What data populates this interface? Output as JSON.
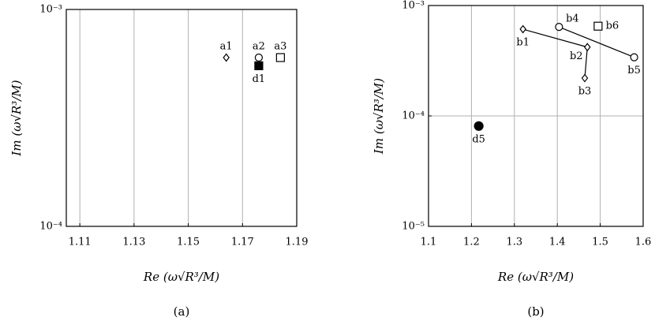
{
  "chart_data": [
    {
      "type": "scatter",
      "caption": "(a)",
      "x_label": "Re (ω√R³/M)",
      "y_label": "Im (ω√R³/M)",
      "xlim": [
        1.105,
        1.19
      ],
      "xticks": [
        1.11,
        1.13,
        1.15,
        1.17,
        1.19
      ],
      "ylim": [
        0.0001,
        0.001
      ],
      "ylog": true,
      "yticks": [
        {
          "value": 0.0001,
          "label": "10⁻⁴"
        },
        {
          "value": 0.001,
          "label": "10⁻³"
        }
      ],
      "grid": true,
      "series": [
        {
          "marker": "diamond",
          "filled": false,
          "line": false,
          "x": [
            1.164
          ],
          "values": [
            0.0006
          ],
          "labels": [
            "a1"
          ],
          "label_positions": [
            "above"
          ]
        },
        {
          "marker": "circle",
          "filled": false,
          "line": false,
          "x": [
            1.176
          ],
          "values": [
            0.0006
          ],
          "labels": [
            "a2"
          ],
          "label_positions": [
            "above"
          ]
        },
        {
          "marker": "square",
          "filled": false,
          "line": false,
          "x": [
            1.184
          ],
          "values": [
            0.0006
          ],
          "labels": [
            "a3"
          ],
          "label_positions": [
            "above"
          ]
        },
        {
          "marker": "square",
          "filled": true,
          "line": false,
          "x": [
            1.176
          ],
          "values": [
            0.00055
          ],
          "labels": [
            "d1"
          ],
          "label_positions": [
            "below"
          ]
        }
      ]
    },
    {
      "type": "scatter",
      "caption": "(b)",
      "x_label": "Re (ω√R³/M)",
      "y_label": "Im (ω√R³/M)",
      "xlim": [
        1.1,
        1.6
      ],
      "xticks": [
        1.1,
        1.2,
        1.3,
        1.4,
        1.5,
        1.6
      ],
      "ylim": [
        1e-05,
        0.001
      ],
      "ylog": true,
      "yticks": [
        {
          "value": 1e-05,
          "label": "10⁻⁵"
        },
        {
          "value": 0.0001,
          "label": "10⁻⁴"
        },
        {
          "value": 0.001,
          "label": "10⁻³"
        }
      ],
      "grid": true,
      "series": [
        {
          "marker": "diamond",
          "filled": false,
          "line": true,
          "x": [
            1.32,
            1.47,
            1.464
          ],
          "values": [
            0.00061,
            0.00042,
            0.00022
          ],
          "labels": [
            "b1",
            "b2",
            "b3"
          ],
          "label_positions": [
            "below",
            "below-left",
            "below"
          ]
        },
        {
          "marker": "circle",
          "filled": false,
          "line": true,
          "x": [
            1.404,
            1.579
          ],
          "values": [
            0.00064,
            0.00034
          ],
          "labels": [
            "b4",
            "b5"
          ],
          "label_positions": [
            "above-right",
            "below"
          ]
        },
        {
          "marker": "square",
          "filled": false,
          "line": false,
          "x": [
            1.495
          ],
          "values": [
            0.00065
          ],
          "labels": [
            "b6"
          ],
          "label_positions": [
            "right"
          ]
        },
        {
          "marker": "circle",
          "filled": true,
          "line": false,
          "x": [
            1.217
          ],
          "values": [
            8.1e-05
          ],
          "labels": [
            "d5"
          ],
          "label_positions": [
            "below"
          ]
        }
      ]
    }
  ]
}
